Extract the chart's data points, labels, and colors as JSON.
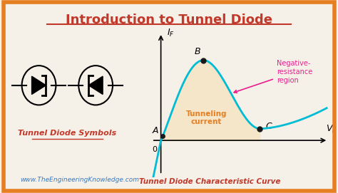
{
  "title": "Introduction to Tunnel Diode",
  "title_color": "#c0392b",
  "background_color": "#f5f0e8",
  "outer_border_color": "#e67e22",
  "subtitle_left": "Tunnel Diode Symbols",
  "subtitle_left_color": "#c0392b",
  "subtitle_right": "Tunnel Diode Characteristic Curve",
  "subtitle_right_color": "#c0392b",
  "watermark": "www.TheEngineeringKnowledge.com",
  "watermark_color": "#3a7abf",
  "curve_color": "#00bcd4",
  "fill_color": "#f5e6c8",
  "neg_res_text": "Negative-\nresistance\nregion",
  "neg_res_color": "#e91e8c",
  "tunneling_text": "Tunneling\ncurrent",
  "tunneling_color": "#e67e22",
  "point_color": "#1a1a1a",
  "vB": 0.28,
  "vC": 0.65,
  "IB": 0.82,
  "IC": 0.12
}
